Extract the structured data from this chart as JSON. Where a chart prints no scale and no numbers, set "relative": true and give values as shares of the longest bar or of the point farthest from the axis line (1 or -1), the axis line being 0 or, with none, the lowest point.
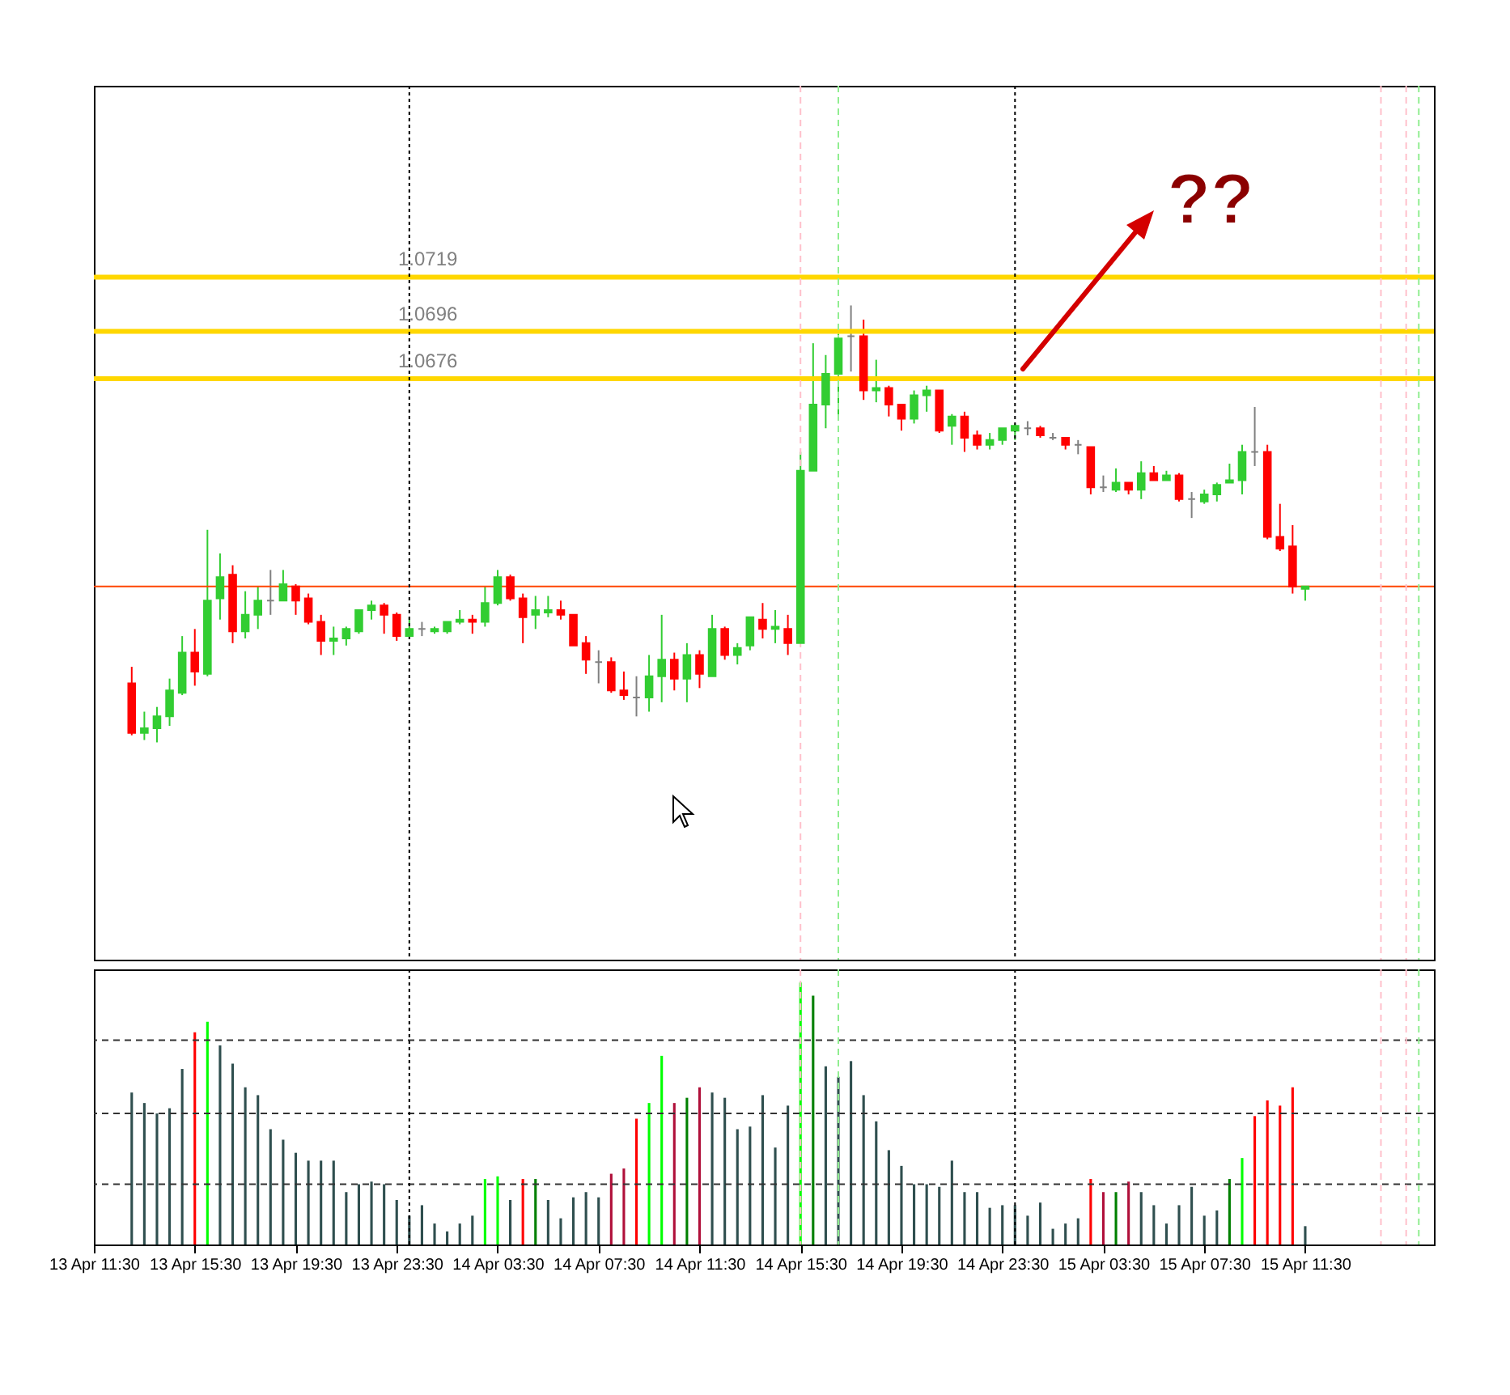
{
  "chart_data": [
    {
      "type": "candlestick",
      "x": [
        "--04-13T13:00",
        "--04-13T13:30",
        "--04-13T14:00",
        "--04-13T14:30",
        "--04-13T15:00",
        "--04-13T15:30",
        "--04-13T16:00",
        "--04-13T16:30",
        "--04-13T17:00",
        "--04-13T17:30",
        "--04-13T18:00",
        "--04-13T18:30",
        "--04-13T19:00",
        "--04-13T19:30",
        "--04-13T20:00",
        "--04-13T20:30",
        "--04-13T21:00",
        "--04-13T21:30",
        "--04-13T22:00",
        "--04-13T22:30",
        "--04-13T23:00",
        "--04-13T23:30",
        "--04-14T00:00",
        "--04-14T00:30",
        "--04-14T01:00",
        "--04-14T01:30",
        "--04-14T02:00",
        "--04-14T02:30",
        "--04-14T03:00",
        "--04-14T03:30",
        "--04-14T04:00",
        "--04-14T04:30",
        "--04-14T05:00",
        "--04-14T05:30",
        "--04-14T06:00",
        "--04-14T06:30",
        "--04-14T07:00",
        "--04-14T07:30",
        "--04-14T08:00",
        "--04-14T08:30",
        "--04-14T09:00",
        "--04-14T09:30",
        "--04-14T10:00",
        "--04-14T10:30",
        "--04-14T11:00",
        "--04-14T11:30",
        "--04-14T12:00",
        "--04-14T12:30",
        "--04-14T13:00",
        "--04-14T13:30",
        "--04-14T14:00",
        "--04-14T14:30",
        "--04-14T15:00",
        "--04-14T15:30",
        "--04-14T16:00",
        "--04-14T16:30",
        "--04-14T17:00",
        "--04-14T17:30",
        "--04-14T18:00",
        "--04-14T18:30",
        "--04-14T19:00",
        "--04-14T19:30",
        "--04-14T20:00",
        "--04-14T20:30",
        "--04-14T21:00",
        "--04-14T21:30",
        "--04-14T22:00",
        "--04-14T22:30",
        "--04-14T23:00",
        "--04-14T23:30",
        "--04-15T00:00",
        "--04-15T00:30",
        "--04-15T01:00",
        "--04-15T01:30",
        "--04-15T02:00",
        "--04-15T02:30",
        "--04-15T03:00",
        "--04-15T03:30",
        "--04-15T04:00",
        "--04-15T04:30",
        "--04-15T05:00",
        "--04-15T05:30",
        "--04-15T06:00",
        "--04-15T06:30",
        "--04-15T07:00",
        "--04-15T07:30",
        "--04-15T08:00",
        "--04-15T08:30",
        "--04-15T09:00",
        "--04-15T09:30",
        "--04-15T10:00",
        "--04-15T10:30",
        "--04-15T11:00",
        "--04-15T11:30"
      ],
      "ohlc": [
        [
          1.0547,
          1.0554,
          1.0525,
          1.0526
        ],
        [
          1.0526,
          1.0535,
          1.0523,
          1.0528
        ],
        [
          1.0528,
          1.0537,
          1.0522,
          1.0533
        ],
        [
          1.0533,
          1.0549,
          1.0529,
          1.0544
        ],
        [
          1.0543,
          1.0567,
          1.0542,
          1.056
        ],
        [
          1.056,
          1.057,
          1.0546,
          1.0552
        ],
        [
          1.0551,
          1.0612,
          1.055,
          1.0582
        ],
        [
          1.0583,
          1.0602,
          1.0574,
          1.0592
        ],
        [
          1.0593,
          1.0597,
          1.0564,
          1.0569
        ],
        [
          1.0569,
          1.0586,
          1.0566,
          1.0576
        ],
        [
          1.0576,
          1.0588,
          1.057,
          1.0582
        ],
        [
          1.0582,
          1.0595,
          1.0576,
          1.0582
        ],
        [
          1.0582,
          1.0595,
          1.0582,
          1.0589
        ],
        [
          1.0588,
          1.0589,
          1.0576,
          1.0582
        ],
        [
          1.0583,
          1.0585,
          1.0572,
          1.0573
        ],
        [
          1.0573,
          1.0576,
          1.0559,
          1.0565
        ],
        [
          1.0565,
          1.0571,
          1.0559,
          1.0566
        ],
        [
          1.0566,
          1.0571,
          1.0563,
          1.057
        ],
        [
          1.0569,
          1.0578,
          1.0568,
          1.0578
        ],
        [
          1.0578,
          1.0582,
          1.0574,
          1.058
        ],
        [
          1.058,
          1.0581,
          1.0568,
          1.0576
        ],
        [
          1.0576,
          1.0577,
          1.0565,
          1.0567
        ],
        [
          1.0567,
          1.0575,
          1.0567,
          1.057
        ],
        [
          1.057,
          1.0573,
          1.0567,
          1.057
        ],
        [
          1.0569,
          1.0571,
          1.0568,
          1.057
        ],
        [
          1.0569,
          1.0573,
          1.0568,
          1.0573
        ],
        [
          1.0573,
          1.0578,
          1.0572,
          1.0574
        ],
        [
          1.0574,
          1.0576,
          1.0568,
          1.0573
        ],
        [
          1.0573,
          1.0588,
          1.0571,
          1.0581
        ],
        [
          1.0581,
          1.0595,
          1.058,
          1.0592
        ],
        [
          1.0592,
          1.0593,
          1.0582,
          1.0583
        ],
        [
          1.0583,
          1.0585,
          1.0564,
          1.0575
        ],
        [
          1.0576,
          1.0584,
          1.057,
          1.0578
        ],
        [
          1.0577,
          1.0584,
          1.0575,
          1.0578
        ],
        [
          1.0578,
          1.0582,
          1.0574,
          1.0576
        ],
        [
          1.0576,
          1.0576,
          1.0563,
          1.0563
        ],
        [
          1.0564,
          1.0567,
          1.0551,
          1.0557
        ],
        [
          1.0556,
          1.0561,
          1.0547,
          1.0556
        ],
        [
          1.0556,
          1.0558,
          1.0543,
          1.0544
        ],
        [
          1.0544,
          1.0552,
          1.054,
          1.0542
        ],
        [
          1.0541,
          1.055,
          1.0533,
          1.0541
        ],
        [
          1.0541,
          1.0559,
          1.0535,
          1.055
        ],
        [
          1.055,
          1.0576,
          1.0539,
          1.0557
        ],
        [
          1.0557,
          1.056,
          1.0544,
          1.0549
        ],
        [
          1.0549,
          1.0564,
          1.0539,
          1.0559
        ],
        [
          1.0559,
          1.0561,
          1.0545,
          1.0551
        ],
        [
          1.055,
          1.0576,
          1.055,
          1.057
        ],
        [
          1.057,
          1.0571,
          1.0557,
          1.0559
        ],
        [
          1.0559,
          1.0564,
          1.0555,
          1.0562
        ],
        [
          1.0563,
          1.0575,
          1.0561,
          1.0575
        ],
        [
          1.0574,
          1.0581,
          1.0566,
          1.057
        ],
        [
          1.057,
          1.0578,
          1.0564,
          1.0571
        ],
        [
          1.057,
          1.0576,
          1.0559,
          1.0564
        ],
        [
          1.0564,
          1.0645,
          1.0564,
          1.0637
        ],
        [
          1.0637,
          1.0691,
          1.0637,
          1.0665
        ],
        [
          1.0665,
          1.0686,
          1.0655,
          1.0678
        ],
        [
          1.0678,
          1.0695,
          1.0659,
          1.0693
        ],
        [
          1.0694,
          1.0707,
          1.0679,
          1.0694
        ],
        [
          1.0694,
          1.0701,
          1.0667,
          1.0671
        ],
        [
          1.0671,
          1.0684,
          1.0666,
          1.0672
        ],
        [
          1.0672,
          1.0673,
          1.066,
          1.0665
        ],
        [
          1.0665,
          1.0665,
          1.0654,
          1.0659
        ],
        [
          1.0659,
          1.0671,
          1.0657,
          1.0669
        ],
        [
          1.0669,
          1.0673,
          1.0662,
          1.0671
        ],
        [
          1.0671,
          1.0671,
          1.0653,
          1.0654
        ],
        [
          1.0656,
          1.0661,
          1.0648,
          1.066
        ],
        [
          1.066,
          1.0662,
          1.0645,
          1.0651
        ],
        [
          1.0652,
          1.0654,
          1.0646,
          1.0648
        ],
        [
          1.0648,
          1.0653,
          1.0646,
          1.065
        ],
        [
          1.065,
          1.0655,
          1.0648,
          1.0655
        ],
        [
          1.0654,
          1.0657,
          1.065,
          1.0656
        ],
        [
          1.0655,
          1.0658,
          1.0652,
          1.0655
        ],
        [
          1.0655,
          1.0656,
          1.0651,
          1.0652
        ],
        [
          1.0651,
          1.0653,
          1.065,
          1.0651
        ],
        [
          1.0651,
          1.0651,
          1.0646,
          1.0648
        ],
        [
          1.0648,
          1.065,
          1.0644,
          1.0648
        ],
        [
          1.0647,
          1.0647,
          1.0627,
          1.063
        ],
        [
          1.063,
          1.0635,
          1.0628,
          1.063
        ],
        [
          1.0629,
          1.0638,
          1.0628,
          1.0632
        ],
        [
          1.0632,
          1.0632,
          1.0627,
          1.0629
        ],
        [
          1.0629,
          1.0641,
          1.0625,
          1.0636
        ],
        [
          1.0636,
          1.0639,
          1.0633,
          1.0633
        ],
        [
          1.0633,
          1.0637,
          1.0633,
          1.0635
        ],
        [
          1.0635,
          1.0636,
          1.0624,
          1.0625
        ],
        [
          1.0625,
          1.0628,
          1.0617,
          1.0625
        ],
        [
          1.0624,
          1.0629,
          1.0623,
          1.0627
        ],
        [
          1.0627,
          1.0632,
          1.0624,
          1.0631
        ],
        [
          1.0632,
          1.064,
          1.0632,
          1.0633
        ],
        [
          1.0633,
          1.0648,
          1.0627,
          1.0645
        ],
        [
          1.0645,
          1.0664,
          1.0639,
          1.0645
        ],
        [
          1.0645,
          1.0648,
          1.0608,
          1.0609
        ],
        [
          1.0609,
          1.0623,
          1.0603,
          1.0604
        ],
        [
          1.0605,
          1.0614,
          1.0585,
          1.0588
        ],
        [
          1.0587,
          1.0588,
          1.0582,
          1.0588
        ]
      ],
      "colors": [
        "#ff0000",
        "#32cd32",
        "#32cd32",
        "#32cd32",
        "#32cd32",
        "#ff0000",
        "#32cd32",
        "#32cd32",
        "#ff0000",
        "#32cd32",
        "#32cd32",
        "#808080",
        "#32cd32",
        "#ff0000",
        "#ff0000",
        "#ff0000",
        "#32cd32",
        "#32cd32",
        "#32cd32",
        "#32cd32",
        "#ff0000",
        "#ff0000",
        "#32cd32",
        "#808080",
        "#32cd32",
        "#32cd32",
        "#32cd32",
        "#ff0000",
        "#32cd32",
        "#32cd32",
        "#ff0000",
        "#ff0000",
        "#32cd32",
        "#32cd32",
        "#ff0000",
        "#ff0000",
        "#ff0000",
        "#808080",
        "#ff0000",
        "#ff0000",
        "#808080",
        "#32cd32",
        "#32cd32",
        "#ff0000",
        "#32cd32",
        "#ff0000",
        "#32cd32",
        "#ff0000",
        "#32cd32",
        "#32cd32",
        "#ff0000",
        "#32cd32",
        "#ff0000",
        "#32cd32",
        "#32cd32",
        "#32cd32",
        "#32cd32",
        "#808080",
        "#ff0000",
        "#32cd32",
        "#ff0000",
        "#ff0000",
        "#32cd32",
        "#32cd32",
        "#ff0000",
        "#32cd32",
        "#ff0000",
        "#ff0000",
        "#32cd32",
        "#32cd32",
        "#32cd32",
        "#808080",
        "#ff0000",
        "#808080",
        "#ff0000",
        "#808080",
        "#ff0000",
        "#808080",
        "#32cd32",
        "#ff0000",
        "#32cd32",
        "#ff0000",
        "#32cd32",
        "#ff0000",
        "#808080",
        "#32cd32",
        "#32cd32",
        "#32cd32",
        "#32cd32",
        "#808080",
        "#ff0000",
        "#ff0000",
        "#ff0000",
        "#32cd32"
      ],
      "xlim": [
        "--04-13T11:30",
        "--04-15T16:36"
      ],
      "ylim": [
        1.043,
        1.08
      ],
      "tick_labels": false,
      "ref_lines": [
        {
          "axis": "y",
          "value": 1.0719,
          "label": "1.0719",
          "color": "#ffd700",
          "line_style": "solid"
        },
        {
          "axis": "y",
          "value": 1.0696,
          "label": "1.0696",
          "color": "#ffd700",
          "line_style": "solid"
        },
        {
          "axis": "y",
          "value": 1.0676,
          "label": "1.0676",
          "color": "#ffd700",
          "line_style": "solid"
        },
        {
          "axis": "y",
          "value": 1.0588,
          "label": null,
          "color": "#ff4500",
          "line_style": "solid"
        },
        {
          "axis": "x",
          "value": "--04-14T00:00",
          "label": null,
          "color": "#000000",
          "line_style": "dotted"
        },
        {
          "axis": "x",
          "value": "--04-15T00:00",
          "label": null,
          "color": "#000000",
          "line_style": "dotted"
        },
        {
          "axis": "x",
          "value": "--04-14T15:30",
          "label": null,
          "color": "#ffc0cb",
          "line_style": "dashed"
        },
        {
          "axis": "x",
          "value": "--04-14T17:00",
          "label": null,
          "color": "#90ee90",
          "line_style": "dashed"
        },
        {
          "axis": "x",
          "value": "--04-15T14:30",
          "label": null,
          "color": "#ffc0cb",
          "line_style": "dashed"
        },
        {
          "axis": "x",
          "value": "--04-15T15:30",
          "label": null,
          "color": "#ffc0cb",
          "line_style": "dashed"
        },
        {
          "axis": "x",
          "value": "--04-15T16:00",
          "label": null,
          "color": "#90ee90",
          "line_style": "dashed"
        }
      ],
      "annotations": [
        "??"
      ]
    },
    {
      "type": "bar",
      "relative": true,
      "x": [
        "--04-13T13:00",
        "--04-13T13:30",
        "--04-13T14:00",
        "--04-13T14:30",
        "--04-13T15:00",
        "--04-13T15:30",
        "--04-13T16:00",
        "--04-13T16:30",
        "--04-13T17:00",
        "--04-13T17:30",
        "--04-13T18:00",
        "--04-13T18:30",
        "--04-13T19:00",
        "--04-13T19:30",
        "--04-13T20:00",
        "--04-13T20:30",
        "--04-13T21:00",
        "--04-13T21:30",
        "--04-13T22:00",
        "--04-13T22:30",
        "--04-13T23:00",
        "--04-13T23:30",
        "--04-14T00:00",
        "--04-14T00:30",
        "--04-14T01:00",
        "--04-14T01:30",
        "--04-14T02:00",
        "--04-14T02:30",
        "--04-14T03:00",
        "--04-14T03:30",
        "--04-14T04:00",
        "--04-14T04:30",
        "--04-14T05:00",
        "--04-14T05:30",
        "--04-14T06:00",
        "--04-14T06:30",
        "--04-14T07:00",
        "--04-14T07:30",
        "--04-14T08:00",
        "--04-14T08:30",
        "--04-14T09:00",
        "--04-14T09:30",
        "--04-14T10:00",
        "--04-14T10:30",
        "--04-14T11:00",
        "--04-14T11:30",
        "--04-14T12:00",
        "--04-14T12:30",
        "--04-14T13:00",
        "--04-14T13:30",
        "--04-14T14:00",
        "--04-14T14:30",
        "--04-14T15:00",
        "--04-14T15:30",
        "--04-14T16:00",
        "--04-14T16:30",
        "--04-14T17:00",
        "--04-14T17:30",
        "--04-14T18:00",
        "--04-14T18:30",
        "--04-14T19:00",
        "--04-14T19:30",
        "--04-14T20:00",
        "--04-14T20:30",
        "--04-14T21:00",
        "--04-14T21:30",
        "--04-14T22:00",
        "--04-14T22:30",
        "--04-14T23:00",
        "--04-14T23:30",
        "--04-15T00:00",
        "--04-15T00:30",
        "--04-15T01:00",
        "--04-15T01:30",
        "--04-15T02:00",
        "--04-15T02:30",
        "--04-15T03:00",
        "--04-15T03:30",
        "--04-15T04:00",
        "--04-15T04:30",
        "--04-15T05:00",
        "--04-15T05:30",
        "--04-15T06:00",
        "--04-15T06:30",
        "--04-15T07:00",
        "--04-15T07:30",
        "--04-15T08:00",
        "--04-15T08:30",
        "--04-15T09:00",
        "--04-15T09:30",
        "--04-15T10:00",
        "--04-15T10:30",
        "--04-15T11:00",
        "--04-15T11:30"
      ],
      "values": [
        0.58,
        0.54,
        0.5,
        0.52,
        0.67,
        0.81,
        0.85,
        0.76,
        0.69,
        0.6,
        0.57,
        0.44,
        0.4,
        0.35,
        0.32,
        0.32,
        0.32,
        0.2,
        0.23,
        0.24,
        0.23,
        0.17,
        0.11,
        0.15,
        0.08,
        0.05,
        0.08,
        0.11,
        0.25,
        0.26,
        0.17,
        0.25,
        0.25,
        0.17,
        0.1,
        0.18,
        0.2,
        0.18,
        0.27,
        0.29,
        0.48,
        0.54,
        0.72,
        0.54,
        0.56,
        0.6,
        0.58,
        0.56,
        0.44,
        0.45,
        0.57,
        0.37,
        0.53,
        1,
        0.95,
        0.68,
        0.64,
        0.7,
        0.57,
        0.47,
        0.36,
        0.3,
        0.23,
        0.23,
        0.22,
        0.32,
        0.2,
        0.2,
        0.14,
        0.15,
        0.15,
        0.11,
        0.16,
        0.06,
        0.08,
        0.1,
        0.25,
        0.2,
        0.2,
        0.24,
        0.2,
        0.15,
        0.08,
        0.15,
        0.22,
        0.11,
        0.13,
        0.25,
        0.33,
        0.49,
        0.55,
        0.53,
        0.6,
        0.07
      ],
      "colors": [
        "#2f4f4f",
        "#2f4f4f",
        "#2f4f4f",
        "#2f4f4f",
        "#2f4f4f",
        "#ff0000",
        "#00ff00",
        "#2f4f4f",
        "#2f4f4f",
        "#2f4f4f",
        "#2f4f4f",
        "#2f4f4f",
        "#2f4f4f",
        "#2f4f4f",
        "#2f4f4f",
        "#2f4f4f",
        "#2f4f4f",
        "#2f4f4f",
        "#2f4f4f",
        "#2f4f4f",
        "#2f4f4f",
        "#2f4f4f",
        "#2f4f4f",
        "#2f4f4f",
        "#2f4f4f",
        "#2f4f4f",
        "#2f4f4f",
        "#2f4f4f",
        "#00ff00",
        "#00ff00",
        "#2f4f4f",
        "#ff0000",
        "#008000",
        "#2f4f4f",
        "#2f4f4f",
        "#2f4f4f",
        "#2f4f4f",
        "#2f4f4f",
        "#b0103a",
        "#b0103a",
        "#ff0000",
        "#00ff00",
        "#00ff00",
        "#b0103a",
        "#008000",
        "#b0103a",
        "#2f4f4f",
        "#2f4f4f",
        "#2f4f4f",
        "#2f4f4f",
        "#2f4f4f",
        "#2f4f4f",
        "#2f4f4f",
        "#00ff00",
        "#008000",
        "#2f4f4f",
        "#2f4f4f",
        "#2f4f4f",
        "#2f4f4f",
        "#2f4f4f",
        "#2f4f4f",
        "#2f4f4f",
        "#2f4f4f",
        "#2f4f4f",
        "#2f4f4f",
        "#2f4f4f",
        "#2f4f4f",
        "#2f4f4f",
        "#2f4f4f",
        "#2f4f4f",
        "#2f4f4f",
        "#2f4f4f",
        "#2f4f4f",
        "#2f4f4f",
        "#2f4f4f",
        "#2f4f4f",
        "#ff0000",
        "#b0103a",
        "#008000",
        "#b0103a",
        "#2f4f4f",
        "#2f4f4f",
        "#2f4f4f",
        "#2f4f4f",
        "#2f4f4f",
        "#2f4f4f",
        "#2f4f4f",
        "#008000",
        "#00ff00",
        "#ff0000",
        "#ff0000",
        "#ff0000",
        "#ff0000",
        "#2f4f4f"
      ],
      "xlim": [
        "--04-13T11:30",
        "--04-15T16:36"
      ],
      "xticks": [
        {
          "value": "--04-13T11:30",
          "label": "13 Apr 11:30"
        },
        {
          "value": "--04-13T15:30",
          "label": "13 Apr 15:30"
        },
        {
          "value": "--04-13T19:30",
          "label": "13 Apr 19:30"
        },
        {
          "value": "--04-13T23:30",
          "label": "13 Apr 23:30"
        },
        {
          "value": "--04-14T03:30",
          "label": "14 Apr 03:30"
        },
        {
          "value": "--04-14T07:30",
          "label": "14 Apr 07:30"
        },
        {
          "value": "--04-14T11:30",
          "label": "14 Apr 11:30"
        },
        {
          "value": "--04-14T15:30",
          "label": "14 Apr 15:30"
        },
        {
          "value": "--04-14T19:30",
          "label": "14 Apr 19:30"
        },
        {
          "value": "--04-14T23:30",
          "label": "14 Apr 23:30"
        },
        {
          "value": "--04-15T03:30",
          "label": "15 Apr 03:30"
        },
        {
          "value": "--04-15T07:30",
          "label": "15 Apr 07:30"
        },
        {
          "value": "--04-15T11:30",
          "label": "15 Apr 11:30"
        }
      ],
      "tick_labels": "x",
      "ref_lines": [
        {
          "axis": "y",
          "value": 0.78,
          "label": null,
          "color": "#333333",
          "line_style": "dashed"
        },
        {
          "axis": "y",
          "value": 0.5,
          "label": null,
          "color": "#333333",
          "line_style": "dashed"
        },
        {
          "axis": "y",
          "value": 0.23,
          "label": null,
          "color": "#333333",
          "line_style": "dashed"
        },
        {
          "axis": "x",
          "value": "--04-14T00:00",
          "label": null,
          "color": "#000000",
          "line_style": "dotted"
        },
        {
          "axis": "x",
          "value": "--04-15T00:00",
          "label": null,
          "color": "#000000",
          "line_style": "dotted"
        },
        {
          "axis": "x",
          "value": "--04-14T15:30",
          "label": null,
          "color": "#ffc0cb",
          "line_style": "dashed"
        },
        {
          "axis": "x",
          "value": "--04-14T17:00",
          "label": null,
          "color": "#90ee90",
          "line_style": "dashed"
        },
        {
          "axis": "x",
          "value": "--04-15T14:30",
          "label": null,
          "color": "#ffc0cb",
          "line_style": "dashed"
        },
        {
          "axis": "x",
          "value": "--04-15T15:30",
          "label": null,
          "color": "#ffc0cb",
          "line_style": "dashed"
        },
        {
          "axis": "x",
          "value": "--04-15T16:00",
          "label": null,
          "color": "#90ee90",
          "line_style": "dashed"
        }
      ]
    }
  ]
}
